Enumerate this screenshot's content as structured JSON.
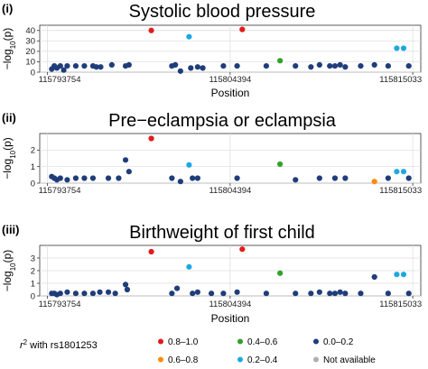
{
  "colors": {
    "r2_0.8_1.0": "#e41a1c",
    "r2_0.6_0.8": "#ff8c00",
    "r2_0.4_0.6": "#33a02c",
    "r2_0.2_0.4": "#1fa8e0",
    "r2_0.0_0.2": "#1f3d7a",
    "not_available": "#b0b0b0"
  },
  "legend": {
    "title_prefix": "r",
    "title_sup": "2",
    "title_suffix": " with rs1801253",
    "items": [
      {
        "label": "0.8–1.0",
        "color_key": "r2_0.8_1.0"
      },
      {
        "label": "0.4–0.6",
        "color_key": "r2_0.4_0.6"
      },
      {
        "label": "0.0–0.2",
        "color_key": "r2_0.0_0.2"
      },
      {
        "label": "0.6–0.8",
        "color_key": "r2_0.6_0.8"
      },
      {
        "label": "0.2–0.4",
        "color_key": "r2_0.2_0.4"
      },
      {
        "label": "Not available",
        "color_key": "not_available"
      }
    ]
  },
  "chart_data": [
    {
      "type": "scatter",
      "panel": "(i)",
      "title": "Systolic blood pressure",
      "xlabel": "Position",
      "ylabel": "−log10(p)",
      "xlim": [
        115793300,
        115815500
      ],
      "ylim": [
        0,
        45
      ],
      "yticks": [
        0,
        10,
        20,
        30,
        40
      ],
      "xticks": [
        115793754,
        115804394,
        115815033
      ],
      "xticklabels": [
        "115793754",
        "115804394",
        "115815033"
      ],
      "grid": true,
      "points": [
        {
          "x": 115794000,
          "y": 3,
          "r2": "r2_0.0_0.2"
        },
        {
          "x": 115794150,
          "y": 6,
          "r2": "r2_0.0_0.2"
        },
        {
          "x": 115794300,
          "y": 4,
          "r2": "r2_0.0_0.2"
        },
        {
          "x": 115794500,
          "y": 6,
          "r2": "r2_0.0_0.2"
        },
        {
          "x": 115794700,
          "y": 2,
          "r2": "r2_0.0_0.2"
        },
        {
          "x": 115794900,
          "y": 6,
          "r2": "r2_0.0_0.2"
        },
        {
          "x": 115795400,
          "y": 6,
          "r2": "r2_0.0_0.2"
        },
        {
          "x": 115795900,
          "y": 6,
          "r2": "r2_0.0_0.2"
        },
        {
          "x": 115796400,
          "y": 6,
          "r2": "r2_0.0_0.2"
        },
        {
          "x": 115796600,
          "y": 5,
          "r2": "r2_0.0_0.2"
        },
        {
          "x": 115796850,
          "y": 5,
          "r2": "r2_0.0_0.2"
        },
        {
          "x": 115797500,
          "y": 7,
          "r2": "r2_0.0_0.2"
        },
        {
          "x": 115798300,
          "y": 6,
          "r2": "r2_0.0_0.2"
        },
        {
          "x": 115798500,
          "y": 7,
          "r2": "r2_0.0_0.2"
        },
        {
          "x": 115799800,
          "y": 40,
          "r2": "r2_0.8_1.0"
        },
        {
          "x": 115801000,
          "y": 6,
          "r2": "r2_0.0_0.2"
        },
        {
          "x": 115801200,
          "y": 7,
          "r2": "r2_0.0_0.2"
        },
        {
          "x": 115801500,
          "y": 1,
          "r2": "r2_0.0_0.2"
        },
        {
          "x": 115802000,
          "y": 34,
          "r2": "r2_0.2_0.4"
        },
        {
          "x": 115802100,
          "y": 4,
          "r2": "r2_0.0_0.2"
        },
        {
          "x": 115802500,
          "y": 5,
          "r2": "r2_0.0_0.2"
        },
        {
          "x": 115802800,
          "y": 4,
          "r2": "r2_0.0_0.2"
        },
        {
          "x": 115804000,
          "y": 6,
          "r2": "r2_0.0_0.2"
        },
        {
          "x": 115804800,
          "y": 6,
          "r2": "r2_0.0_0.2"
        },
        {
          "x": 115805100,
          "y": 41,
          "r2": "r2_0.8_1.0"
        },
        {
          "x": 115806500,
          "y": 6,
          "r2": "r2_0.0_0.2"
        },
        {
          "x": 115807300,
          "y": 11,
          "r2": "r2_0.4_0.6"
        },
        {
          "x": 115808200,
          "y": 6,
          "r2": "r2_0.0_0.2"
        },
        {
          "x": 115809100,
          "y": 5,
          "r2": "r2_0.0_0.2"
        },
        {
          "x": 115809600,
          "y": 7,
          "r2": "r2_0.0_0.2"
        },
        {
          "x": 115810200,
          "y": 6,
          "r2": "r2_0.0_0.2"
        },
        {
          "x": 115810500,
          "y": 6,
          "r2": "r2_0.0_0.2"
        },
        {
          "x": 115810800,
          "y": 7,
          "r2": "r2_0.0_0.2"
        },
        {
          "x": 115811100,
          "y": 5,
          "r2": "r2_0.0_0.2"
        },
        {
          "x": 115812000,
          "y": 6,
          "r2": "r2_0.0_0.2"
        },
        {
          "x": 115812800,
          "y": 7,
          "r2": "r2_0.0_0.2"
        },
        {
          "x": 115813600,
          "y": 6,
          "r2": "r2_0.0_0.2"
        },
        {
          "x": 115814100,
          "y": 23,
          "r2": "r2_0.2_0.4"
        },
        {
          "x": 115814500,
          "y": 23,
          "r2": "r2_0.2_0.4"
        },
        {
          "x": 115814800,
          "y": 6,
          "r2": "r2_0.0_0.2"
        }
      ]
    },
    {
      "type": "scatter",
      "panel": "(ii)",
      "title": "Pre−eclampsia or eclampsia",
      "xlabel": "",
      "ylabel": "−log10(p)",
      "xlim": [
        115793300,
        115815500
      ],
      "ylim": [
        0,
        3
      ],
      "yticks": [
        0,
        1,
        2
      ],
      "xticks": [
        115793754,
        115804394,
        115815033
      ],
      "xticklabels": [
        "115793754",
        "115804394",
        "115815033"
      ],
      "grid": true,
      "points": [
        {
          "x": 115794000,
          "y": 0.4,
          "r2": "r2_0.0_0.2"
        },
        {
          "x": 115794150,
          "y": 0.3,
          "r2": "r2_0.0_0.2"
        },
        {
          "x": 115794300,
          "y": 0.2,
          "r2": "r2_0.0_0.2"
        },
        {
          "x": 115794500,
          "y": 0.3,
          "r2": "r2_0.0_0.2"
        },
        {
          "x": 115794900,
          "y": 0.2,
          "r2": "r2_0.0_0.2"
        },
        {
          "x": 115795400,
          "y": 0.3,
          "r2": "r2_0.0_0.2"
        },
        {
          "x": 115795900,
          "y": 0.3,
          "r2": "r2_0.0_0.2"
        },
        {
          "x": 115796400,
          "y": 0.3,
          "r2": "r2_0.0_0.2"
        },
        {
          "x": 115797300,
          "y": 0.3,
          "r2": "r2_0.0_0.2"
        },
        {
          "x": 115797900,
          "y": 0.3,
          "r2": "r2_0.0_0.2"
        },
        {
          "x": 115798300,
          "y": 1.4,
          "r2": "r2_0.0_0.2"
        },
        {
          "x": 115798500,
          "y": 0.7,
          "r2": "r2_0.0_0.2"
        },
        {
          "x": 115799800,
          "y": 2.7,
          "r2": "r2_0.8_1.0"
        },
        {
          "x": 115801000,
          "y": 0.3,
          "r2": "r2_0.0_0.2"
        },
        {
          "x": 115801500,
          "y": 0.1,
          "r2": "r2_0.0_0.2"
        },
        {
          "x": 115802000,
          "y": 1.1,
          "r2": "r2_0.2_0.4"
        },
        {
          "x": 115802200,
          "y": 0.3,
          "r2": "r2_0.0_0.2"
        },
        {
          "x": 115802500,
          "y": 0.3,
          "r2": "r2_0.0_0.2"
        },
        {
          "x": 115804800,
          "y": 0.3,
          "r2": "r2_0.0_0.2"
        },
        {
          "x": 115807300,
          "y": 1.15,
          "r2": "r2_0.4_0.6"
        },
        {
          "x": 115808200,
          "y": 0.2,
          "r2": "r2_0.0_0.2"
        },
        {
          "x": 115809600,
          "y": 0.3,
          "r2": "r2_0.0_0.2"
        },
        {
          "x": 115810500,
          "y": 0.3,
          "r2": "r2_0.0_0.2"
        },
        {
          "x": 115811100,
          "y": 0.3,
          "r2": "r2_0.0_0.2"
        },
        {
          "x": 115812800,
          "y": 0.1,
          "r2": "r2_0.6_0.8"
        },
        {
          "x": 115813600,
          "y": 0.3,
          "r2": "r2_0.0_0.2"
        },
        {
          "x": 115814100,
          "y": 0.7,
          "r2": "r2_0.2_0.4"
        },
        {
          "x": 115814500,
          "y": 0.7,
          "r2": "r2_0.2_0.4"
        },
        {
          "x": 115814800,
          "y": 0.3,
          "r2": "r2_0.0_0.2"
        }
      ]
    },
    {
      "type": "scatter",
      "panel": "(iii)",
      "title": "Birthweight of first child",
      "xlabel": "Position",
      "ylabel": "−log10(p)",
      "xlim": [
        115793300,
        115815500
      ],
      "ylim": [
        0,
        4
      ],
      "yticks": [
        0,
        1,
        2,
        3
      ],
      "xticks": [
        115793754,
        115804394,
        115815033
      ],
      "xticklabels": [
        "115793754",
        "115804394",
        "115815033"
      ],
      "grid": true,
      "points": [
        {
          "x": 115794000,
          "y": 0.2,
          "r2": "r2_0.0_0.2"
        },
        {
          "x": 115794150,
          "y": 0.2,
          "r2": "r2_0.0_0.2"
        },
        {
          "x": 115794300,
          "y": 0.1,
          "r2": "r2_0.0_0.2"
        },
        {
          "x": 115794500,
          "y": 0.2,
          "r2": "r2_0.0_0.2"
        },
        {
          "x": 115794900,
          "y": 0.3,
          "r2": "r2_0.0_0.2"
        },
        {
          "x": 115795400,
          "y": 0.2,
          "r2": "r2_0.0_0.2"
        },
        {
          "x": 115795900,
          "y": 0.2,
          "r2": "r2_0.0_0.2"
        },
        {
          "x": 115796400,
          "y": 0.2,
          "r2": "r2_0.0_0.2"
        },
        {
          "x": 115796800,
          "y": 0.3,
          "r2": "r2_0.0_0.2"
        },
        {
          "x": 115797300,
          "y": 0.3,
          "r2": "r2_0.0_0.2"
        },
        {
          "x": 115797700,
          "y": 0.2,
          "r2": "r2_0.0_0.2"
        },
        {
          "x": 115798300,
          "y": 0.9,
          "r2": "r2_0.0_0.2"
        },
        {
          "x": 115798400,
          "y": 0.5,
          "r2": "r2_0.0_0.2"
        },
        {
          "x": 115799800,
          "y": 3.5,
          "r2": "r2_0.8_1.0"
        },
        {
          "x": 115801000,
          "y": 0.2,
          "r2": "r2_0.0_0.2"
        },
        {
          "x": 115801300,
          "y": 0.6,
          "r2": "r2_0.0_0.2"
        },
        {
          "x": 115802000,
          "y": 2.3,
          "r2": "r2_0.2_0.4"
        },
        {
          "x": 115802200,
          "y": 0.2,
          "r2": "r2_0.0_0.2"
        },
        {
          "x": 115802500,
          "y": 0.3,
          "r2": "r2_0.0_0.2"
        },
        {
          "x": 115803300,
          "y": 0.2,
          "r2": "r2_0.0_0.2"
        },
        {
          "x": 115804000,
          "y": 0.2,
          "r2": "r2_0.0_0.2"
        },
        {
          "x": 115804800,
          "y": 0.3,
          "r2": "r2_0.0_0.2"
        },
        {
          "x": 115805100,
          "y": 3.7,
          "r2": "r2_0.8_1.0"
        },
        {
          "x": 115806500,
          "y": 0.2,
          "r2": "r2_0.0_0.2"
        },
        {
          "x": 115807300,
          "y": 1.8,
          "r2": "r2_0.4_0.6"
        },
        {
          "x": 115808200,
          "y": 0.2,
          "r2": "r2_0.0_0.2"
        },
        {
          "x": 115809100,
          "y": 0.2,
          "r2": "r2_0.0_0.2"
        },
        {
          "x": 115809600,
          "y": 0.3,
          "r2": "r2_0.0_0.2"
        },
        {
          "x": 115810200,
          "y": 0.2,
          "r2": "r2_0.0_0.2"
        },
        {
          "x": 115810500,
          "y": 0.2,
          "r2": "r2_0.0_0.2"
        },
        {
          "x": 115810800,
          "y": 0.3,
          "r2": "r2_0.0_0.2"
        },
        {
          "x": 115811100,
          "y": 0.2,
          "r2": "r2_0.0_0.2"
        },
        {
          "x": 115812000,
          "y": 0.2,
          "r2": "r2_0.0_0.2"
        },
        {
          "x": 115812800,
          "y": 1.5,
          "r2": "r2_0.0_0.2"
        },
        {
          "x": 115813600,
          "y": 0.2,
          "r2": "r2_0.0_0.2"
        },
        {
          "x": 115814100,
          "y": 1.7,
          "r2": "r2_0.2_0.4"
        },
        {
          "x": 115814500,
          "y": 1.7,
          "r2": "r2_0.2_0.4"
        },
        {
          "x": 115814800,
          "y": 0.2,
          "r2": "r2_0.0_0.2"
        }
      ]
    }
  ]
}
